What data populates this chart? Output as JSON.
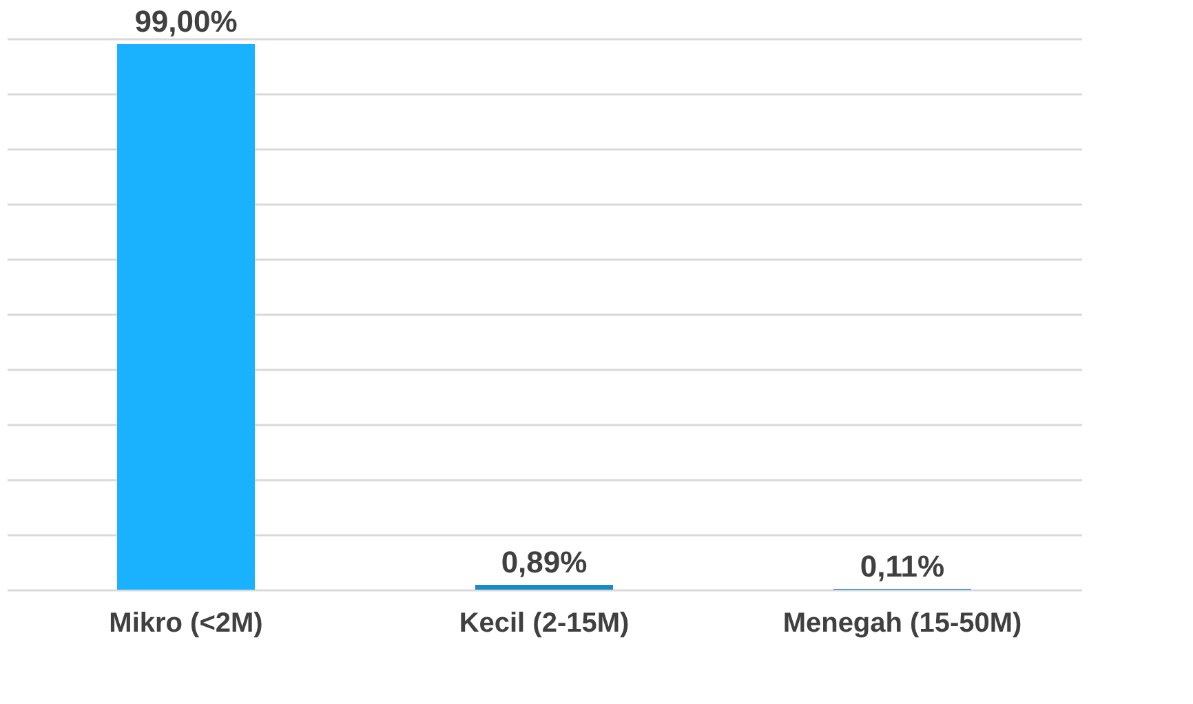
{
  "chart_data": {
    "type": "bar",
    "categories": [
      "Mikro (<2M)",
      "Kecil (2-15M)",
      "Menegah (15-50M)"
    ],
    "values": [
      99.0,
      0.89,
      0.11
    ],
    "colors": [
      "#1ab2ff",
      "#1a8ac6",
      "#1a8ac6"
    ],
    "value_labels": [
      "99,00%",
      "0,89%",
      "0,11%"
    ],
    "grid": "y",
    "tick_labels": "x"
  }
}
